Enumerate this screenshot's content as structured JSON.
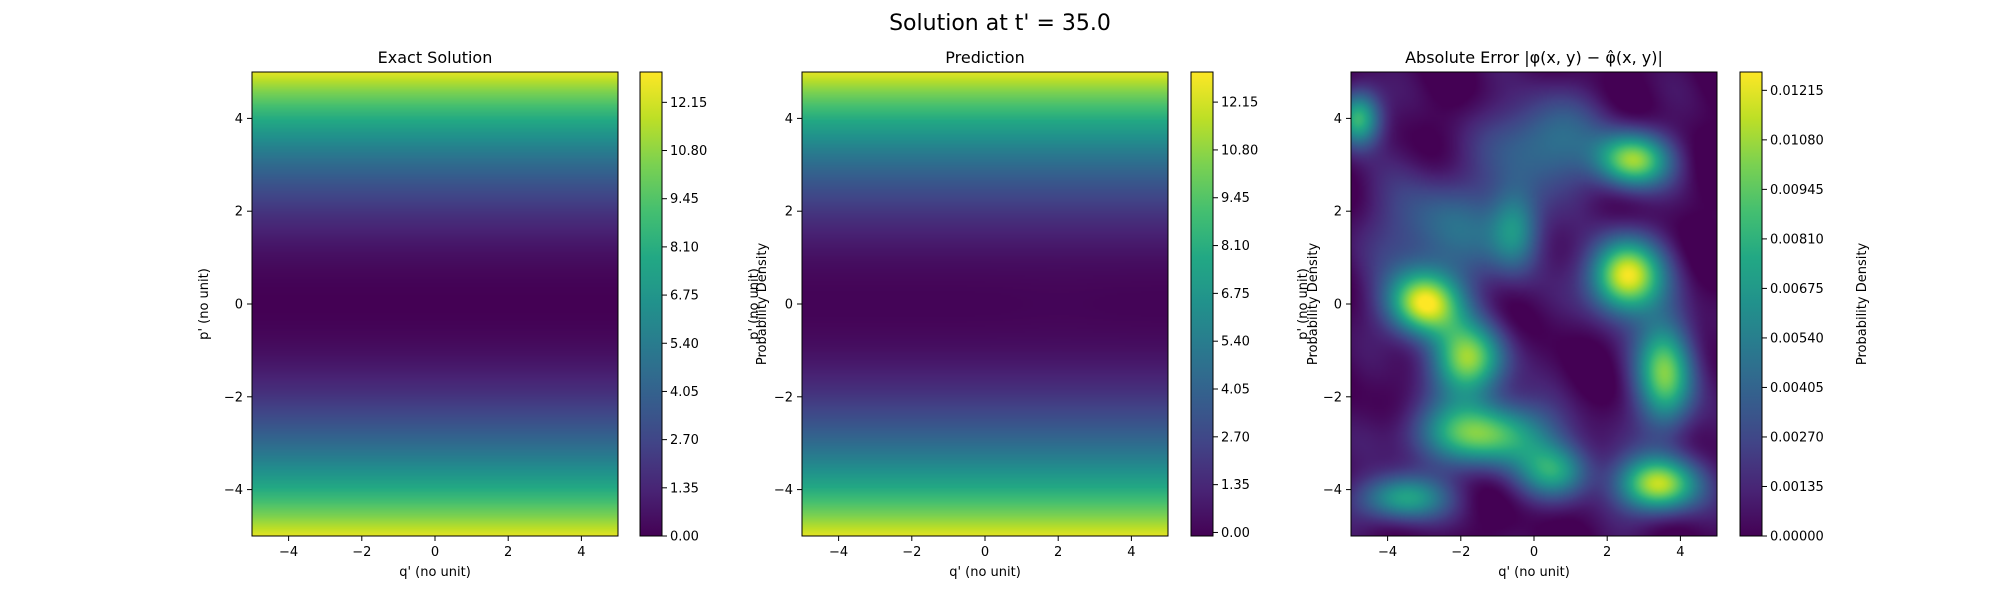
{
  "figure": {
    "title": "Solution at t' = 35.0"
  },
  "chart_data": [
    {
      "type": "heatmap",
      "title": "Exact Solution",
      "xlabel": "q' (no unit)",
      "ylabel": "p' (no unit)",
      "xlim": [
        -5,
        5
      ],
      "ylim": [
        -5,
        5
      ],
      "xticks": [
        -4,
        -2,
        0,
        2,
        4
      ],
      "yticks": [
        -4,
        -2,
        0,
        2,
        4
      ],
      "colormap": "viridis",
      "field": "p-squared band: density = 0.5 * p^2, uniform along q",
      "colorbar": {
        "label": "Probability Density",
        "range": [
          0.0,
          13.0
        ],
        "ticks": [
          "0.00",
          "1.35",
          "2.70",
          "4.05",
          "5.40",
          "6.75",
          "8.10",
          "9.45",
          "10.80",
          "12.15"
        ]
      }
    },
    {
      "type": "heatmap",
      "title": "Prediction",
      "xlabel": "q' (no unit)",
      "ylabel": "p' (no unit)",
      "xlim": [
        -5,
        5
      ],
      "ylim": [
        -5,
        5
      ],
      "xticks": [
        -4,
        -2,
        0,
        2,
        4
      ],
      "yticks": [
        -4,
        -2,
        0,
        2,
        4
      ],
      "colormap": "viridis",
      "field": "p-squared band: density = 0.5 * p^2, uniform along q",
      "colorbar": {
        "label": "Probability Density",
        "range": [
          -0.1,
          13.0
        ],
        "ticks": [
          "0.00",
          "1.35",
          "2.70",
          "4.05",
          "5.40",
          "6.75",
          "8.10",
          "9.45",
          "10.80",
          "12.15"
        ]
      }
    },
    {
      "type": "heatmap",
      "title": "Absolute Error |φ(x, y) − φ̂(x, y)|",
      "xlabel": "q' (no unit)",
      "ylabel": "p' (no unit)",
      "xlim": [
        -5,
        5
      ],
      "ylim": [
        -5,
        5
      ],
      "xticks": [
        -4,
        -2,
        0,
        2,
        4
      ],
      "yticks": [
        -4,
        -2,
        0,
        2,
        4
      ],
      "colormap": "viridis",
      "field": "irregular error blobs, peak ~0.0126 near (2.5, 0.5) and (-3, 0)",
      "colorbar": {
        "label": "Probability Density",
        "range": [
          0.0,
          0.01265
        ],
        "ticks": [
          "0.00000",
          "0.00135",
          "0.00270",
          "0.00405",
          "0.00540",
          "0.00675",
          "0.00810",
          "0.00945",
          "0.01080",
          "0.01215"
        ]
      }
    }
  ]
}
